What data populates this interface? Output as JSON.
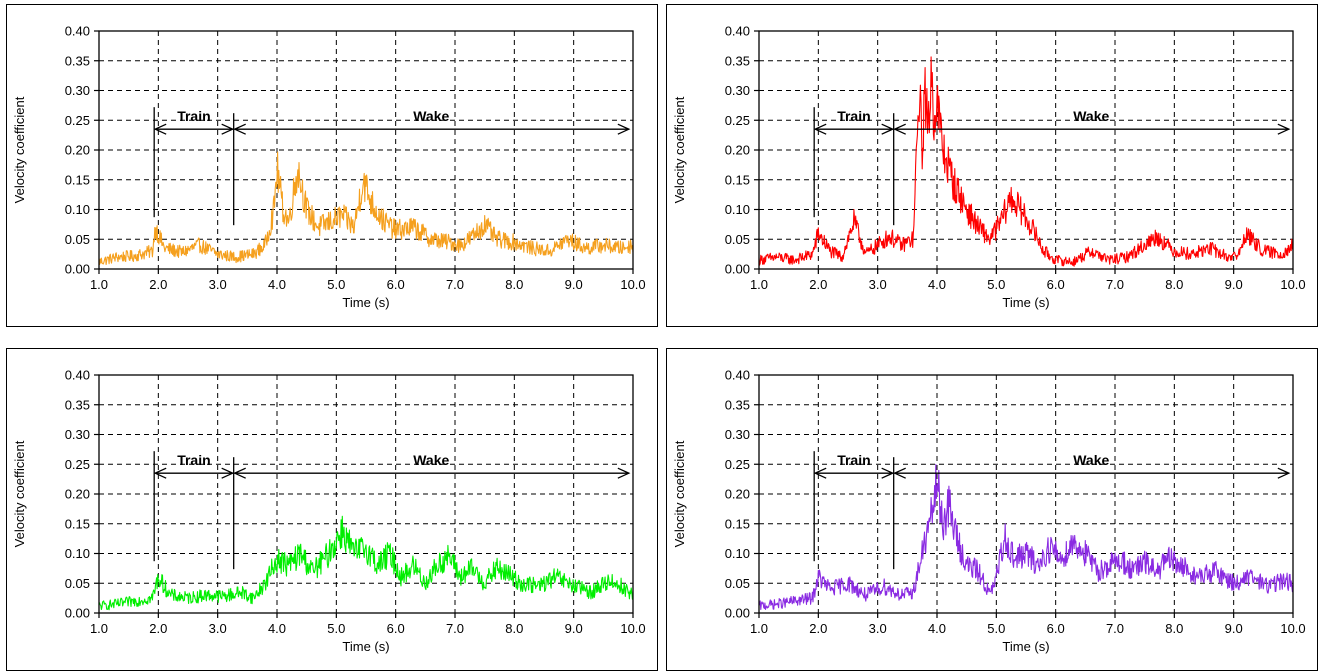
{
  "chart_data": [
    {
      "type": "line",
      "xlabel": "Time (s)",
      "ylabel": "Velocity coefficient",
      "xlim": [
        1.0,
        10.0
      ],
      "ylim": [
        0.0,
        0.4
      ],
      "xticks": [
        "1.0",
        "2.0",
        "3.0",
        "4.0",
        "5.0",
        "6.0",
        "7.0",
        "8.0",
        "9.0",
        "10.0"
      ],
      "yticks": [
        "0.00",
        "0.05",
        "0.10",
        "0.15",
        "0.20",
        "0.25",
        "0.30",
        "0.35",
        "0.40"
      ],
      "grid": true,
      "annotations": {
        "train_label": "Train",
        "wake_label": "Wake",
        "train_start": 1.93,
        "train_end": 3.27,
        "wake_end": 9.93,
        "arrow_y": 0.235
      },
      "series": [
        {
          "color": "#f5a01e",
          "x": [
            1.0,
            1.3,
            1.6,
            1.9,
            1.95,
            2.1,
            2.4,
            2.7,
            3.0,
            3.3,
            3.6,
            3.8,
            3.95,
            4.0,
            4.1,
            4.2,
            4.3,
            4.35,
            4.5,
            4.7,
            4.9,
            5.1,
            5.3,
            5.45,
            5.6,
            5.8,
            6.0,
            6.3,
            6.6,
            6.9,
            7.1,
            7.3,
            7.5,
            7.7,
            8.0,
            8.3,
            8.6,
            8.9,
            9.2,
            9.5,
            9.8,
            10.0
          ],
          "y": [
            0.012,
            0.02,
            0.022,
            0.03,
            0.07,
            0.035,
            0.028,
            0.04,
            0.025,
            0.02,
            0.025,
            0.04,
            0.1,
            0.17,
            0.1,
            0.08,
            0.14,
            0.17,
            0.1,
            0.07,
            0.08,
            0.09,
            0.07,
            0.15,
            0.11,
            0.08,
            0.065,
            0.07,
            0.05,
            0.045,
            0.04,
            0.055,
            0.075,
            0.05,
            0.045,
            0.035,
            0.03,
            0.05,
            0.035,
            0.04,
            0.035,
            0.04
          ]
        }
      ]
    },
    {
      "type": "line",
      "xlabel": "Time (s)",
      "ylabel": "Velocity coefficient",
      "xlim": [
        1.0,
        10.0
      ],
      "ylim": [
        0.0,
        0.4
      ],
      "xticks": [
        "1.0",
        "2.0",
        "3.0",
        "4.0",
        "5.0",
        "6.0",
        "7.0",
        "8.0",
        "9.0",
        "10.0"
      ],
      "yticks": [
        "0.00",
        "0.05",
        "0.10",
        "0.15",
        "0.20",
        "0.25",
        "0.30",
        "0.35",
        "0.40"
      ],
      "grid": true,
      "annotations": {
        "train_label": "Train",
        "wake_label": "Wake",
        "train_start": 1.93,
        "train_end": 3.27,
        "wake_end": 9.93,
        "arrow_y": 0.235
      },
      "series": [
        {
          "color": "#ff0000",
          "x": [
            1.0,
            1.3,
            1.6,
            1.9,
            2.0,
            2.2,
            2.4,
            2.6,
            2.8,
            3.0,
            3.2,
            3.4,
            3.6,
            3.7,
            3.75,
            3.8,
            3.85,
            3.9,
            3.95,
            4.0,
            4.1,
            4.3,
            4.5,
            4.7,
            4.9,
            5.1,
            5.25,
            5.4,
            5.6,
            5.8,
            6.0,
            6.3,
            6.6,
            6.9,
            7.2,
            7.5,
            7.7,
            8.0,
            8.3,
            8.6,
            8.9,
            9.1,
            9.2,
            9.5,
            9.8,
            10.0
          ],
          "y": [
            0.015,
            0.02,
            0.015,
            0.025,
            0.06,
            0.03,
            0.02,
            0.08,
            0.025,
            0.04,
            0.055,
            0.04,
            0.05,
            0.3,
            0.2,
            0.31,
            0.22,
            0.33,
            0.26,
            0.28,
            0.2,
            0.14,
            0.1,
            0.07,
            0.05,
            0.085,
            0.12,
            0.1,
            0.07,
            0.03,
            0.015,
            0.012,
            0.03,
            0.015,
            0.02,
            0.04,
            0.055,
            0.03,
            0.025,
            0.035,
            0.02,
            0.025,
            0.06,
            0.03,
            0.025,
            0.04
          ]
        }
      ]
    },
    {
      "type": "line",
      "xlabel": "Time (s)",
      "ylabel": "Velocity coefficient",
      "xlim": [
        1.0,
        10.0
      ],
      "ylim": [
        0.0,
        0.4
      ],
      "xticks": [
        "1.0",
        "2.0",
        "3.0",
        "4.0",
        "5.0",
        "6.0",
        "7.0",
        "8.0",
        "9.0",
        "10.0"
      ],
      "yticks": [
        "0.00",
        "0.05",
        "0.10",
        "0.15",
        "0.20",
        "0.25",
        "0.30",
        "0.35",
        "0.40"
      ],
      "grid": true,
      "annotations": {
        "train_label": "Train",
        "wake_label": "Wake",
        "train_start": 1.93,
        "train_end": 3.27,
        "wake_end": 9.93,
        "arrow_y": 0.235
      },
      "series": [
        {
          "color": "#00ee00",
          "x": [
            1.0,
            1.3,
            1.6,
            1.9,
            2.0,
            2.2,
            2.5,
            2.8,
            3.1,
            3.4,
            3.6,
            3.8,
            4.0,
            4.2,
            4.4,
            4.6,
            4.8,
            5.0,
            5.1,
            5.3,
            5.5,
            5.7,
            5.9,
            6.1,
            6.3,
            6.5,
            6.7,
            6.9,
            7.1,
            7.3,
            7.5,
            7.7,
            7.9,
            8.1,
            8.4,
            8.7,
            9.0,
            9.3,
            9.6,
            9.8,
            10.0
          ],
          "y": [
            0.012,
            0.015,
            0.02,
            0.025,
            0.06,
            0.03,
            0.025,
            0.03,
            0.028,
            0.035,
            0.025,
            0.05,
            0.09,
            0.08,
            0.1,
            0.07,
            0.09,
            0.12,
            0.14,
            0.1,
            0.11,
            0.08,
            0.1,
            0.06,
            0.08,
            0.05,
            0.08,
            0.095,
            0.06,
            0.075,
            0.05,
            0.075,
            0.065,
            0.05,
            0.045,
            0.06,
            0.045,
            0.035,
            0.055,
            0.045,
            0.03
          ]
        }
      ]
    },
    {
      "type": "line",
      "xlabel": "Time (s)",
      "ylabel": "Velocity coefficient",
      "xlim": [
        1.0,
        10.0
      ],
      "ylim": [
        0.0,
        0.4
      ],
      "xticks": [
        "1.0",
        "2.0",
        "3.0",
        "4.0",
        "5.0",
        "6.0",
        "7.0",
        "8.0",
        "9.0",
        "10.0"
      ],
      "yticks": [
        "0.00",
        "0.05",
        "0.10",
        "0.15",
        "0.20",
        "0.25",
        "0.30",
        "0.35",
        "0.40"
      ],
      "grid": true,
      "annotations": {
        "train_label": "Train",
        "wake_label": "Wake",
        "train_start": 1.93,
        "train_end": 3.27,
        "wake_end": 9.93,
        "arrow_y": 0.235
      },
      "series": [
        {
          "color": "#8a2be2",
          "x": [
            1.0,
            1.3,
            1.6,
            1.9,
            2.0,
            2.2,
            2.5,
            2.8,
            3.1,
            3.4,
            3.6,
            3.75,
            3.9,
            4.0,
            4.1,
            4.2,
            4.35,
            4.5,
            4.7,
            4.9,
            5.0,
            5.15,
            5.3,
            5.5,
            5.7,
            5.9,
            6.1,
            6.3,
            6.5,
            6.7,
            6.9,
            7.1,
            7.3,
            7.5,
            7.7,
            7.9,
            8.1,
            8.4,
            8.7,
            9.0,
            9.3,
            9.6,
            9.8,
            10.0
          ],
          "y": [
            0.012,
            0.015,
            0.02,
            0.025,
            0.06,
            0.04,
            0.05,
            0.03,
            0.045,
            0.03,
            0.035,
            0.1,
            0.16,
            0.22,
            0.15,
            0.18,
            0.12,
            0.08,
            0.07,
            0.03,
            0.06,
            0.13,
            0.09,
            0.1,
            0.08,
            0.11,
            0.09,
            0.12,
            0.1,
            0.07,
            0.08,
            0.09,
            0.07,
            0.085,
            0.07,
            0.09,
            0.08,
            0.06,
            0.07,
            0.05,
            0.06,
            0.045,
            0.055,
            0.05
          ]
        }
      ]
    }
  ]
}
